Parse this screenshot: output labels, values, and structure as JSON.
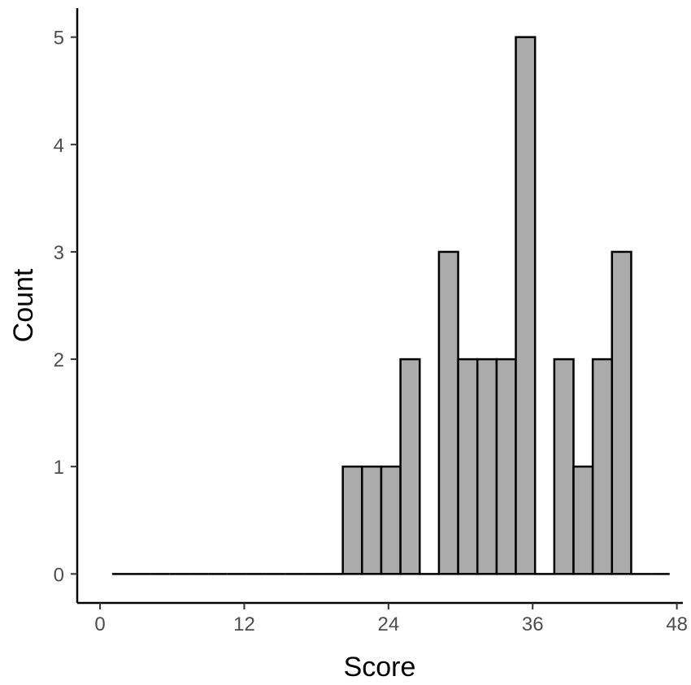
{
  "chart_data": {
    "type": "bar",
    "title": "",
    "xlabel": "Score",
    "ylabel": "Count",
    "xlim": [
      -1.9,
      48.5
    ],
    "ylim": [
      -0.27,
      5.27
    ],
    "xticks": [
      0,
      12,
      24,
      36,
      48
    ],
    "yticks": [
      0,
      1,
      2,
      3,
      4,
      5
    ],
    "bin_width": 1.6,
    "bins": [
      {
        "x0": 1.0,
        "x1": 2.6,
        "count": 0
      },
      {
        "x0": 2.6,
        "x1": 4.2,
        "count": 0
      },
      {
        "x0": 4.2,
        "x1": 5.8,
        "count": 0
      },
      {
        "x0": 5.8,
        "x1": 7.4,
        "count": 0
      },
      {
        "x0": 7.4,
        "x1": 9.0,
        "count": 0
      },
      {
        "x0": 9.0,
        "x1": 10.6,
        "count": 0
      },
      {
        "x0": 10.6,
        "x1": 12.2,
        "count": 0
      },
      {
        "x0": 12.2,
        "x1": 13.8,
        "count": 0
      },
      {
        "x0": 13.8,
        "x1": 15.4,
        "count": 0
      },
      {
        "x0": 15.4,
        "x1": 17.0,
        "count": 0
      },
      {
        "x0": 17.0,
        "x1": 18.6,
        "count": 0
      },
      {
        "x0": 18.6,
        "x1": 20.2,
        "count": 0
      },
      {
        "x0": 20.2,
        "x1": 21.8,
        "count": 1
      },
      {
        "x0": 21.8,
        "x1": 23.4,
        "count": 1
      },
      {
        "x0": 23.4,
        "x1": 25.0,
        "count": 1
      },
      {
        "x0": 25.0,
        "x1": 26.6,
        "count": 2
      },
      {
        "x0": 26.6,
        "x1": 28.2,
        "count": 0
      },
      {
        "x0": 28.2,
        "x1": 29.8,
        "count": 3
      },
      {
        "x0": 29.8,
        "x1": 31.4,
        "count": 2
      },
      {
        "x0": 31.4,
        "x1": 33.0,
        "count": 2
      },
      {
        "x0": 33.0,
        "x1": 34.6,
        "count": 2
      },
      {
        "x0": 34.6,
        "x1": 36.2,
        "count": 5
      },
      {
        "x0": 36.2,
        "x1": 37.8,
        "count": 0
      },
      {
        "x0": 37.8,
        "x1": 39.4,
        "count": 2
      },
      {
        "x0": 39.4,
        "x1": 41.0,
        "count": 1
      },
      {
        "x0": 41.0,
        "x1": 42.6,
        "count": 2
      },
      {
        "x0": 42.6,
        "x1": 44.2,
        "count": 3
      },
      {
        "x0": 44.2,
        "x1": 45.8,
        "count": 0
      },
      {
        "x0": 45.8,
        "x1": 47.4,
        "count": 0
      }
    ],
    "colors": {
      "bar_fill": "#ababab",
      "bar_stroke": "#000000",
      "axis": "#000000",
      "tick_text": "#4d4d4d"
    },
    "grid": false,
    "legend": "none"
  }
}
